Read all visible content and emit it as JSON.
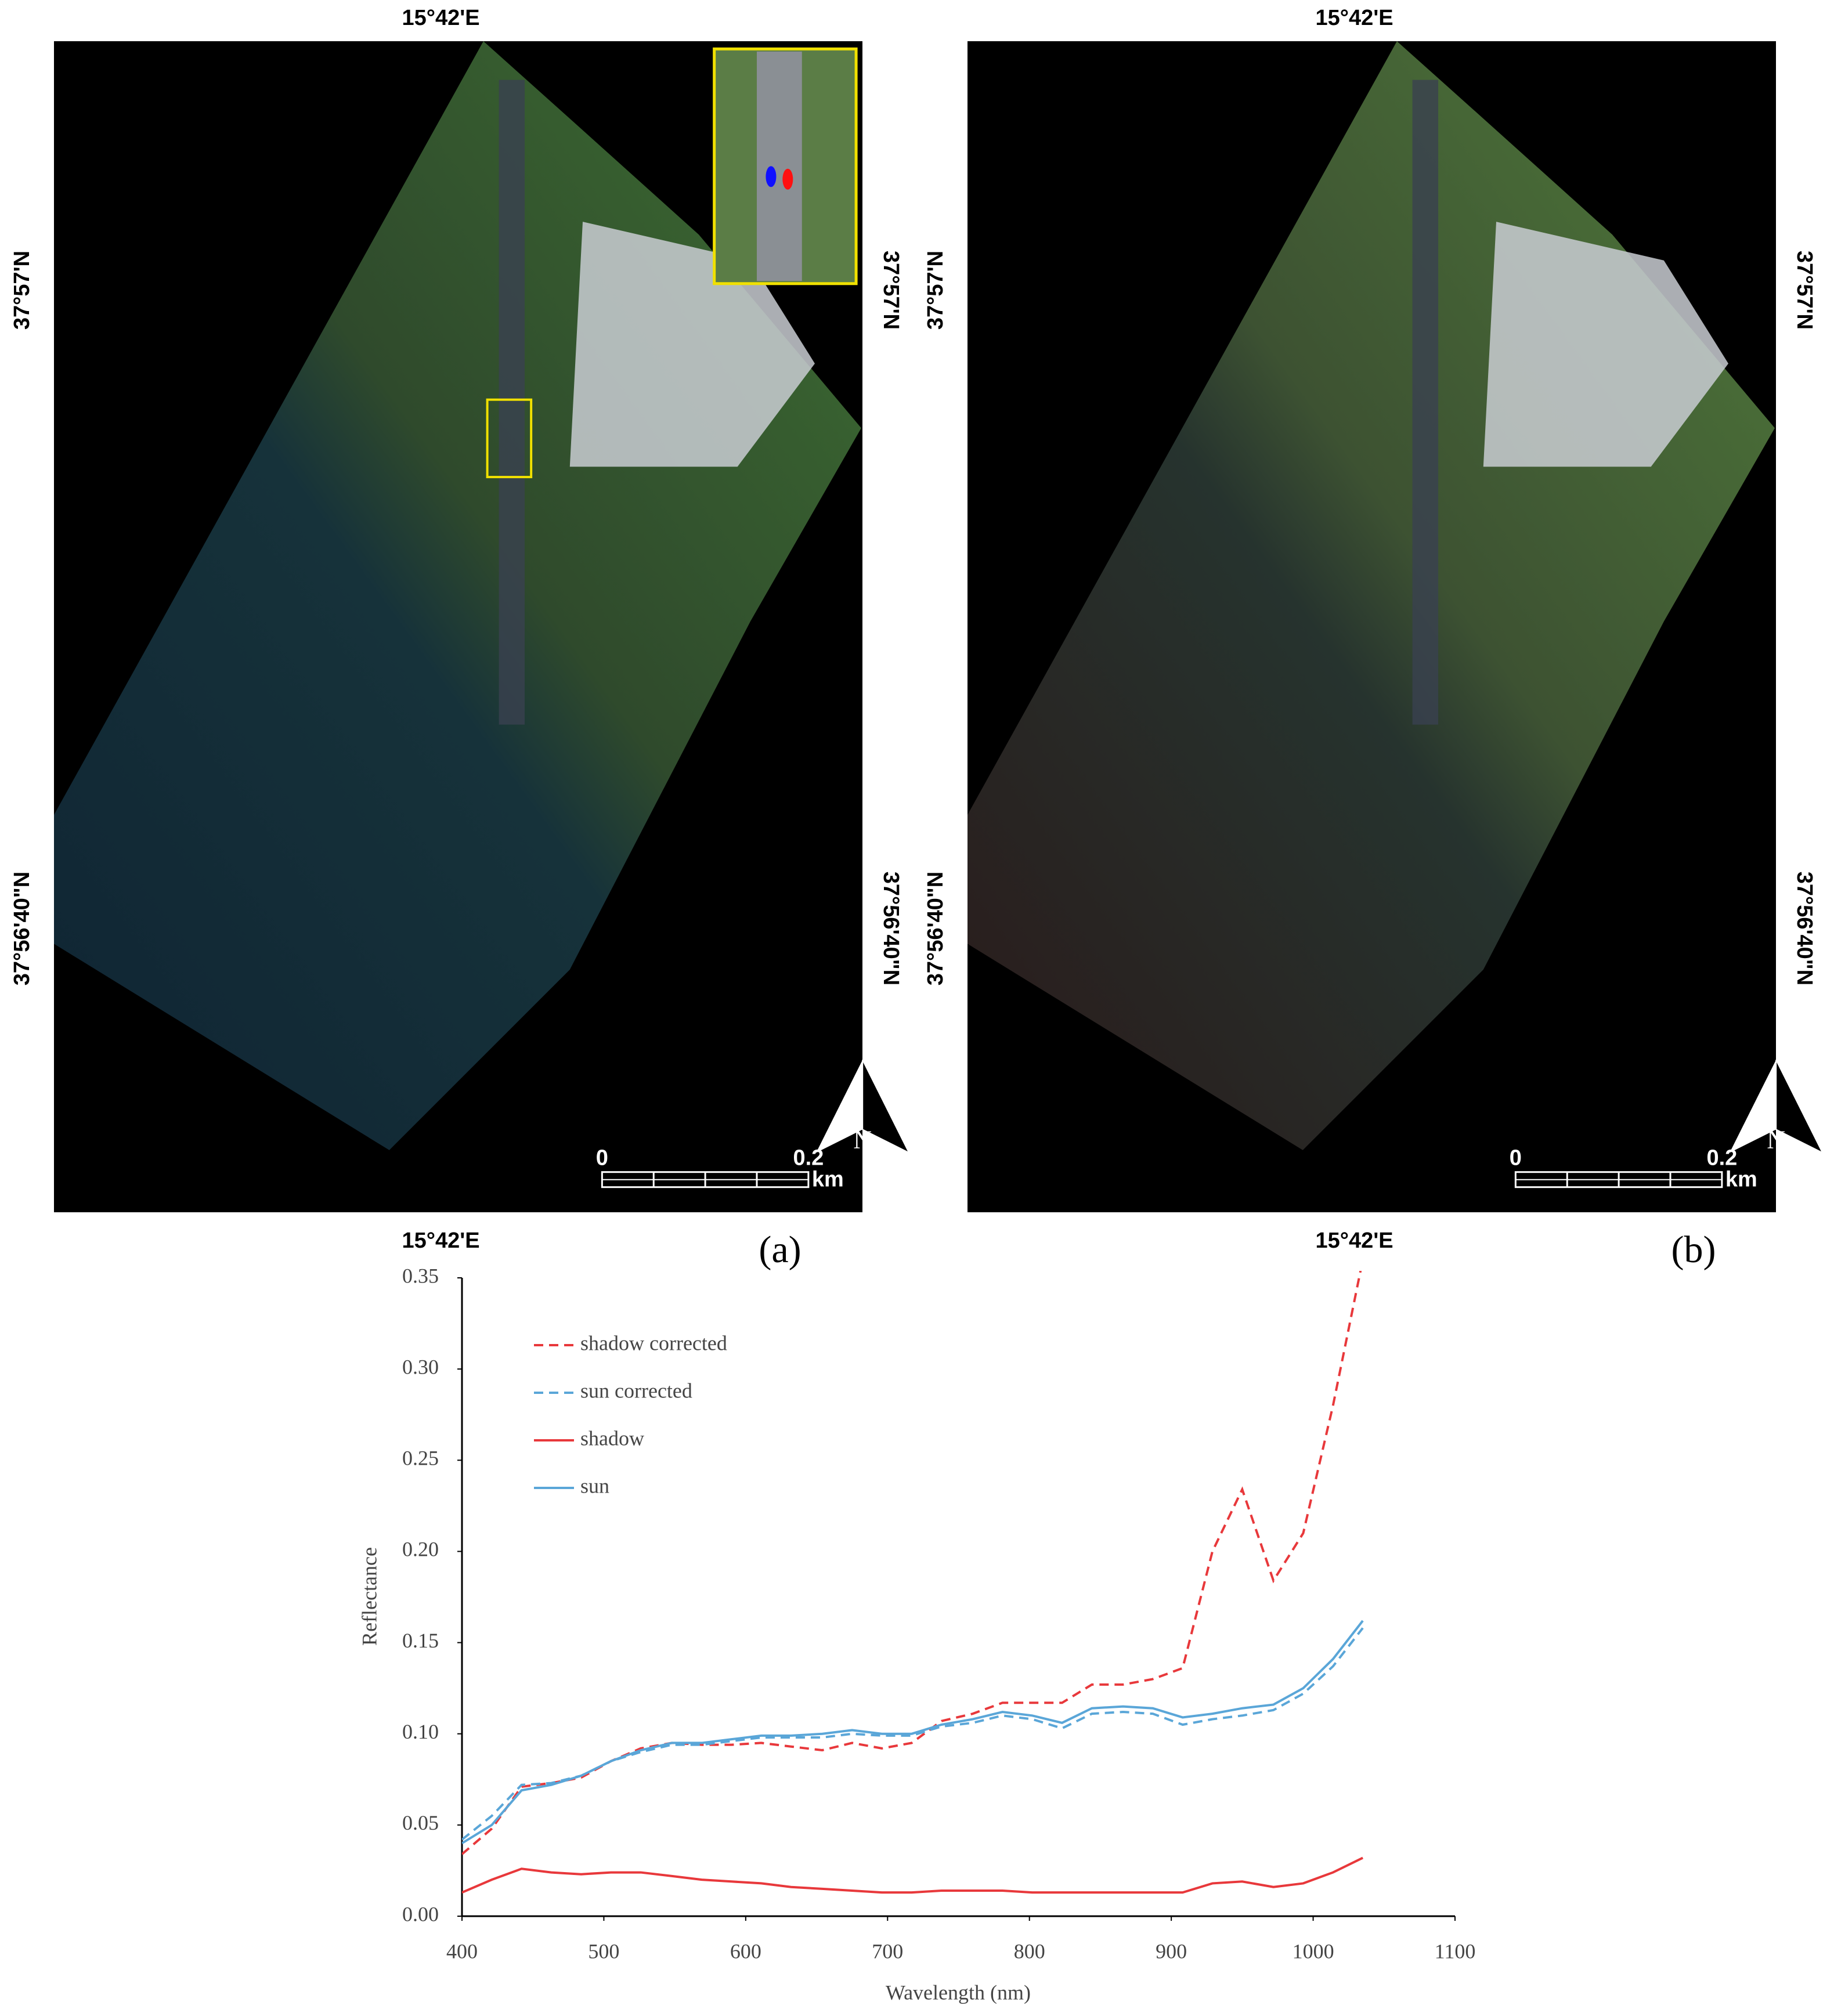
{
  "panels": [
    {
      "label": "(a)",
      "top_lon": "15°42'E",
      "bottom_lon": "15°42'E",
      "lat_upper": "37°57'N",
      "lat_lower": "37°56'40\"N",
      "scale_start": "0",
      "scale_end": "0.2",
      "scale_unit": "km",
      "north": "N"
    },
    {
      "label": "(b)",
      "top_lon": "15°42'E",
      "bottom_lon": "15°42'E",
      "lat_upper": "37°57'N",
      "lat_lower": "37°56'40\"N",
      "scale_start": "0",
      "scale_end": "0.2",
      "scale_unit": "km",
      "north": "N"
    }
  ],
  "chart_data": {
    "type": "line",
    "x_label": "Wavelength (nm)",
    "y_label": "Reflectance",
    "x": [
      400,
      421,
      442,
      463,
      484,
      505,
      526,
      548,
      569,
      590,
      611,
      632,
      654,
      675,
      696,
      717,
      738,
      760,
      781,
      802,
      823,
      844,
      866,
      887,
      908,
      929,
      950,
      972,
      993,
      1014,
      1035
    ],
    "series": [
      {
        "name": "shadow corrected",
        "color": "#e8383b",
        "dash": true,
        "values": [
          0.034,
          0.048,
          0.071,
          0.073,
          0.076,
          0.085,
          0.092,
          0.095,
          0.094,
          0.094,
          0.095,
          0.093,
          0.091,
          0.095,
          0.092,
          0.095,
          0.107,
          0.111,
          0.117,
          0.117,
          0.117,
          0.127,
          0.127,
          0.13,
          0.136,
          0.2,
          0.234,
          0.184,
          0.21,
          0.28,
          0.36
        ]
      },
      {
        "name": "sun corrected",
        "color": "#5aa6d8",
        "dash": true,
        "values": [
          0.042,
          0.055,
          0.072,
          0.073,
          0.077,
          0.085,
          0.09,
          0.094,
          0.094,
          0.096,
          0.098,
          0.098,
          0.098,
          0.1,
          0.099,
          0.099,
          0.104,
          0.106,
          0.11,
          0.108,
          0.103,
          0.111,
          0.112,
          0.111,
          0.105,
          0.108,
          0.11,
          0.113,
          0.122,
          0.137,
          0.158
        ]
      },
      {
        "name": "shadow",
        "color": "#e8383b",
        "dash": false,
        "values": [
          0.013,
          0.02,
          0.026,
          0.024,
          0.023,
          0.024,
          0.024,
          0.022,
          0.02,
          0.019,
          0.018,
          0.016,
          0.015,
          0.014,
          0.013,
          0.013,
          0.014,
          0.014,
          0.014,
          0.013,
          0.013,
          0.013,
          0.013,
          0.013,
          0.013,
          0.018,
          0.019,
          0.016,
          0.018,
          0.024,
          0.032
        ]
      },
      {
        "name": "sun",
        "color": "#5aa6d8",
        "dash": false,
        "values": [
          0.04,
          0.05,
          0.069,
          0.072,
          0.077,
          0.085,
          0.091,
          0.095,
          0.095,
          0.097,
          0.099,
          0.099,
          0.1,
          0.102,
          0.1,
          0.1,
          0.105,
          0.108,
          0.112,
          0.11,
          0.106,
          0.114,
          0.115,
          0.114,
          0.109,
          0.111,
          0.114,
          0.116,
          0.125,
          0.141,
          0.162
        ]
      }
    ],
    "xlim": [
      400,
      1100
    ],
    "xticks": [
      400,
      500,
      600,
      700,
      800,
      900,
      1000,
      1100
    ],
    "ylim": [
      0,
      0.35
    ],
    "yticks": [
      {
        "value": 0,
        "label": "0.00"
      },
      {
        "value": 0.05,
        "label": "0.05"
      },
      {
        "value": 0.1,
        "label": "0.10"
      },
      {
        "value": 0.15,
        "label": "0.15"
      },
      {
        "value": 0.2,
        "label": "0.20"
      },
      {
        "value": 0.25,
        "label": "0.25"
      },
      {
        "value": 0.3,
        "label": "0.30"
      },
      {
        "value": 0.35,
        "label": "0.35"
      }
    ]
  }
}
